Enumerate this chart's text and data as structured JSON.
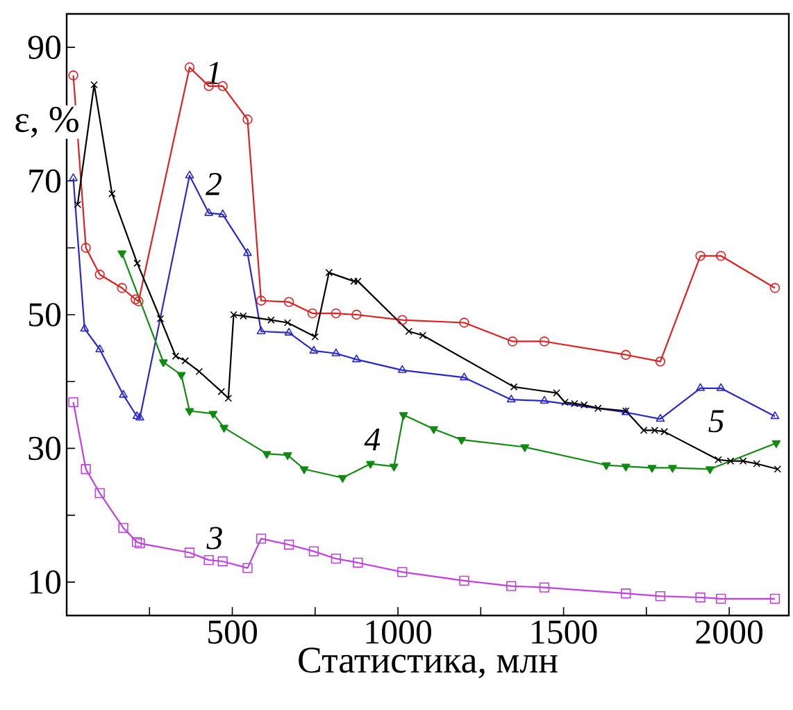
{
  "chart_data": {
    "type": "line",
    "xlabel": "Статистика, млн",
    "ylabel": "ε, %",
    "xlim": [
      0,
      2180
    ],
    "ylim": [
      5,
      95
    ],
    "xticks": [
      {
        "value": 250,
        "label": null
      },
      500,
      {
        "value": 750,
        "label": null
      },
      1000,
      {
        "value": 1250,
        "label": null
      },
      1500,
      {
        "value": 1750,
        "label": null
      },
      2000
    ],
    "yticks": [
      10,
      {
        "value": 20,
        "label": null
      },
      30,
      {
        "value": 40,
        "label": null
      },
      50,
      {
        "value": 60,
        "label": null
      },
      70,
      {
        "value": 80,
        "label": null
      },
      90
    ],
    "grid": false,
    "legend": false,
    "line_style": "solid",
    "series": [
      {
        "name": "1",
        "color": "#e02020",
        "marker": "circle",
        "x": [
          20,
          58,
          100,
          167,
          208,
          217,
          371,
          429,
          471,
          546,
          587,
          671,
          742,
          813,
          875,
          1013,
          1200,
          1346,
          1442,
          1688,
          1792,
          1913,
          1975,
          2138
        ],
        "values": [
          85.8,
          60.0,
          56,
          54,
          52.3,
          52,
          87,
          84.2,
          84.2,
          79.2,
          52.1,
          51.9,
          50.2,
          50.2,
          50,
          49.2,
          48.8,
          46,
          46,
          44,
          43,
          58.8,
          58.8,
          54
        ]
      },
      {
        "name": "2",
        "color": "#2828d0",
        "marker": "triangle",
        "x": [
          20,
          54,
          100,
          171,
          212,
          221,
          371,
          429,
          471,
          546,
          587,
          671,
          746,
          813,
          875,
          1013,
          1200,
          1342,
          1442,
          1688,
          1792,
          1913,
          1975,
          2138
        ],
        "values": [
          70.4,
          47.9,
          44.8,
          38,
          34.8,
          34.6,
          70.8,
          65.2,
          65,
          59.2,
          47.5,
          47.3,
          44.6,
          44.2,
          43.3,
          41.7,
          40.6,
          37.3,
          37.1,
          35.4,
          34.4,
          39,
          39,
          34.8
        ]
      },
      {
        "name": "3",
        "color": "#c040e0",
        "marker": "square",
        "x": [
          20,
          58,
          100,
          171,
          212,
          221,
          371,
          429,
          471,
          546,
          587,
          671,
          746,
          813,
          879,
          1013,
          1200,
          1342,
          1442,
          1688,
          1792,
          1913,
          1975,
          2138
        ],
        "values": [
          36.9,
          26.9,
          23.3,
          18.1,
          16,
          15.8,
          14.4,
          13.3,
          13.1,
          12.1,
          16.5,
          15.6,
          14.6,
          13.5,
          12.9,
          11.5,
          10.2,
          9.4,
          9.2,
          8.3,
          7.9,
          7.7,
          7.5,
          7.5
        ]
      },
      {
        "name": "4",
        "color": "#108a10",
        "marker": "triangle_down",
        "x": [
          167,
          292,
          346,
          371,
          442,
          475,
          604,
          667,
          717,
          833,
          917,
          988,
          1017,
          1108,
          1192,
          1383,
          1629,
          1688,
          1767,
          1829,
          1942,
          2142
        ],
        "values": [
          59.2,
          42.9,
          41,
          35.6,
          35.2,
          33.1,
          29.2,
          29,
          26.9,
          25.6,
          27.7,
          27.3,
          35,
          32.9,
          31.3,
          30.2,
          27.5,
          27.3,
          27.1,
          27.1,
          26.9,
          30.8
        ]
      },
      {
        "name": "5",
        "color": "#000000",
        "marker": "cross",
        "x": [
          33,
          83,
          137,
          213,
          283,
          329,
          358,
          400,
          467,
          488,
          504,
          533,
          617,
          667,
          750,
          792,
          867,
          879,
          1033,
          1075,
          1350,
          1479,
          1504,
          1533,
          1562,
          1604,
          1688,
          1742,
          1775,
          1804,
          1967,
          2004,
          2042,
          2083,
          2146
        ],
        "values": [
          66.5,
          84.4,
          68.1,
          57.7,
          49.4,
          43.8,
          43.1,
          41.5,
          38.5,
          37.5,
          50,
          49.8,
          49.2,
          48.8,
          46.7,
          56.3,
          55,
          55,
          47.5,
          46.9,
          39.2,
          38.3,
          36.9,
          36.7,
          36.5,
          36,
          35.6,
          32.7,
          32.7,
          32.5,
          28.3,
          28.1,
          28.1,
          27.7,
          26.9
        ]
      }
    ]
  }
}
